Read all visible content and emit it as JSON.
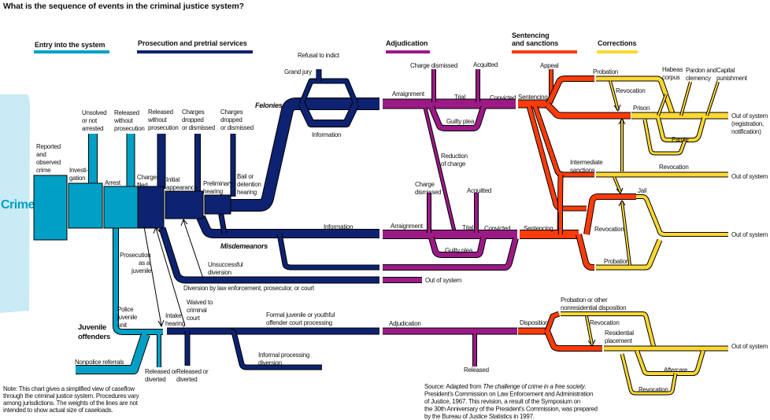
{
  "title": "What is the sequence of events in the criminal justice system?",
  "colors": {
    "entry": "#00a0c6",
    "prosecution": "#0d2270",
    "adjudication": "#9c1a86",
    "sentencing": "#ff3b0a",
    "corrections": "#ffd932",
    "crime": "#c8ebf5"
  },
  "stages": {
    "entry": "Entry into the system",
    "prosecution": "Prosecution and pretrial services",
    "adjudication": "Adjudication",
    "sentencing_1": "Sentencing",
    "sentencing_2": "and sanctions",
    "corrections": "Corrections"
  },
  "labels": {
    "crime": "Crime",
    "reported": [
      "Reported",
      "and",
      "observed",
      "crime"
    ],
    "investigation": [
      "Investi-",
      "gation"
    ],
    "unsolved": [
      "Unsolved",
      "or not",
      "arrested"
    ],
    "arrest": "Arrest",
    "released_np1": [
      "Released",
      "without",
      "prosecution"
    ],
    "released_np2": [
      "Released",
      "without",
      "prosecution"
    ],
    "charges_filed": [
      "Charges",
      "filed"
    ],
    "initial_appearance": [
      "Initial",
      "appearance"
    ],
    "charges_dropped1": [
      "Charges",
      "dropped",
      "or dismissed"
    ],
    "charges_dropped2": [
      "Charges",
      "dropped",
      "or dismissed"
    ],
    "preliminary_hearing": [
      "Preliminary",
      "hearing"
    ],
    "bail": [
      "Bail or",
      "detention",
      "hearing"
    ],
    "refusal": "Refusal to indict",
    "grand_jury": "Grand jury",
    "information_f": "Information",
    "felonies": "Felonies",
    "information_m": "Information",
    "misdemeanors": "Misdemeanors",
    "unsuccessful_diversion": [
      "Unsuccessful",
      "diversion"
    ],
    "diversion": "Diversion by law enforcement, prosecutor, or court",
    "prosecution_juvenile": [
      "Prosecution",
      "as a",
      "juvenile"
    ],
    "police_juvenile": [
      "Police",
      "juvenile",
      "unit"
    ],
    "juvenile_offenders": [
      "Juvenile",
      "offenders"
    ],
    "intake": [
      "Intake",
      "hearing"
    ],
    "waived": [
      "Waived to",
      "criminal",
      "court"
    ],
    "formal_juvenile": [
      "Formal juvenile or youthful",
      "offender court processing"
    ],
    "nonpolice": "Nonpolice referrals",
    "released_diverted1": [
      "Released or",
      "diverted"
    ],
    "released_diverted2": [
      "Released or",
      "diverted"
    ],
    "informal": [
      "Informal processing",
      "diversion"
    ],
    "charge_dismissed_f": "Charge dismissed",
    "acquitted_f": "Acquitted",
    "arraignment_f": "Arraignment",
    "trial_f": "Trial",
    "convicted_f": "Convicted",
    "guilty_plea_f": "Guilty plea",
    "reduction": [
      "Reduction",
      "of charge"
    ],
    "charge_dismissed_m": [
      "Charge",
      "dismissed"
    ],
    "acquitted_m": "Acquitted",
    "arraignment_m": "Arraignment",
    "trial_m": "Trial",
    "convicted_m": "Convicted",
    "guilty_plea_m": "Guilty plea",
    "out_diversion": "Out of system",
    "adjudication_j": "Adjudication",
    "released_j": "Released",
    "appeal": "Appeal",
    "sentencing_f": "Sentencing",
    "sentencing_m": "Sentencing",
    "disposition": "Disposition",
    "probation_f": "Probation",
    "revocation_1": "Revocation",
    "prison": "Prison",
    "habeas": [
      "Habeas",
      "corpus"
    ],
    "pardon": [
      "Pardon and",
      "clemency"
    ],
    "capital": [
      "Capital",
      "punishment"
    ],
    "out_prison": [
      "Out of system",
      "(registration,",
      "notification)"
    ],
    "parole": "Parole",
    "revocation_parole": "Revocation",
    "intermediate": [
      "Intermediate",
      "sanctions"
    ],
    "out_intermediate": "Out of system",
    "jail": "Jail",
    "revocation_m": "Revocation",
    "out_jail": "Out of system",
    "probation_m": "Probation",
    "probation_j": [
      "Probation or other",
      "nonresidential disposition"
    ],
    "revocation_j": "Revocation",
    "residential": [
      "Residential",
      "placement"
    ],
    "out_j": "Out of system",
    "aftercare": "Aftercare",
    "revocation_after": "Revocation"
  },
  "note": [
    "Note: This chart gives a simplified view of caseflow",
    "through the criminal justice system. Procedures vary",
    "among jurisdictions. The weights of the lines are not",
    "intended to show actual size of caseloads."
  ],
  "source": {
    "prefix": "Source: Adapted from ",
    "book": "The challenge of crime in a free society",
    "suffix": ".",
    "lines": [
      "President's Commission on Law Enforcement and Administration",
      "of Justice, 1967. This revision, a result of the Symposium on",
      "the 30th Anniversary of the President's Commission, was prepared",
      "by the Bureau of Justice Statistics in 1997."
    ]
  }
}
